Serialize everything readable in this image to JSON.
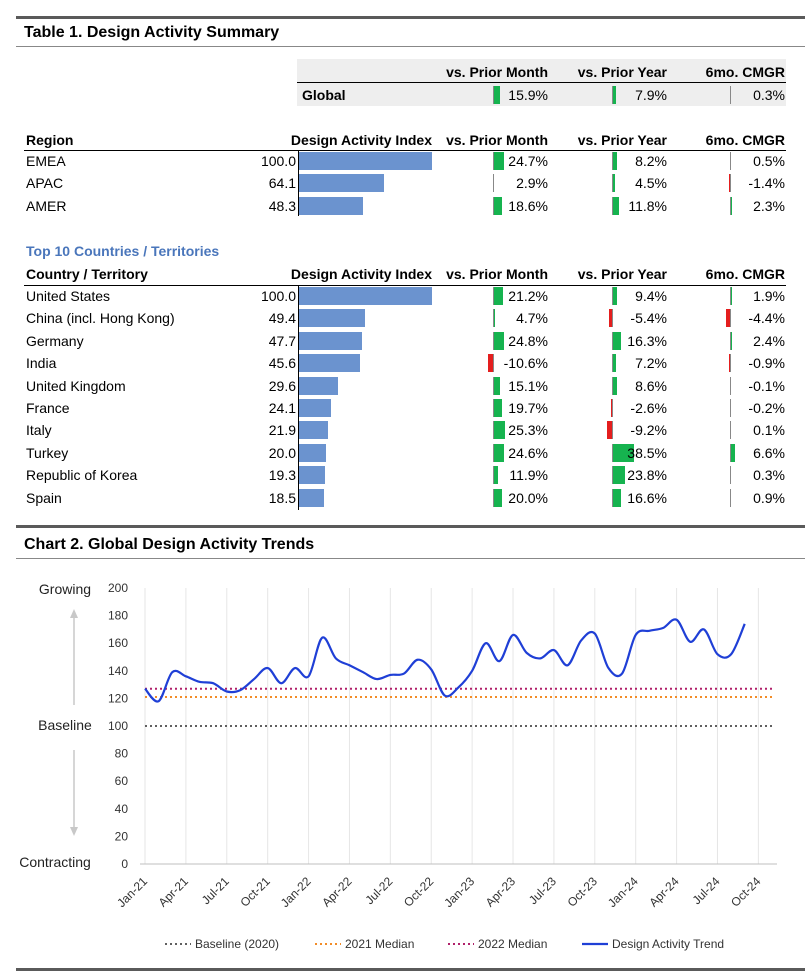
{
  "table1": {
    "title": "Table 1. Design Activity Summary",
    "summary_headers": {
      "mom": "vs. Prior Month",
      "yoy": "vs. Prior Year",
      "cmgr": "6mo. CMGR"
    },
    "global": {
      "label": "Global",
      "mom": "15.9%",
      "yoy": "7.9%",
      "cmgr": "0.3%",
      "mom_v": 15.9,
      "yoy_v": 7.9,
      "cmgr_v": 0.3
    },
    "region_headers": {
      "name": "Region",
      "index": "Design Activity Index",
      "mom": "vs. Prior Month",
      "yoy": "vs. Prior Year",
      "cmgr": "6mo. CMGR"
    },
    "regions": [
      {
        "name": "EMEA",
        "index": "100.0",
        "index_v": 100.0,
        "mom": "24.7%",
        "mom_v": 24.7,
        "yoy": "8.2%",
        "yoy_v": 8.2,
        "cmgr": "0.5%",
        "cmgr_v": 0.5
      },
      {
        "name": "APAC",
        "index": "64.1",
        "index_v": 64.1,
        "mom": "2.9%",
        "mom_v": 2.9,
        "yoy": "4.5%",
        "yoy_v": 4.5,
        "cmgr": "-1.4%",
        "cmgr_v": -1.4
      },
      {
        "name": "AMER",
        "index": "48.3",
        "index_v": 48.3,
        "mom": "18.6%",
        "mom_v": 18.6,
        "yoy": "11.8%",
        "yoy_v": 11.8,
        "cmgr": "2.3%",
        "cmgr_v": 2.3
      }
    ],
    "countries_title": "Top 10 Countries / Territories",
    "country_headers": {
      "name": "Country / Territory",
      "index": "Design Activity Index",
      "mom": "vs. Prior Month",
      "yoy": "vs. Prior Year",
      "cmgr": "6mo. CMGR"
    },
    "countries": [
      {
        "name": "United States",
        "index": "100.0",
        "index_v": 100.0,
        "mom": "21.2%",
        "mom_v": 21.2,
        "yoy": "9.4%",
        "yoy_v": 9.4,
        "cmgr": "1.9%",
        "cmgr_v": 1.9
      },
      {
        "name": "China (incl. Hong Kong)",
        "index": "49.4",
        "index_v": 49.4,
        "mom": "4.7%",
        "mom_v": 4.7,
        "yoy": "-5.4%",
        "yoy_v": -5.4,
        "cmgr": "-4.4%",
        "cmgr_v": -4.4
      },
      {
        "name": "Germany",
        "index": "47.7",
        "index_v": 47.7,
        "mom": "24.8%",
        "mom_v": 24.8,
        "yoy": "16.3%",
        "yoy_v": 16.3,
        "cmgr": "2.4%",
        "cmgr_v": 2.4
      },
      {
        "name": "India",
        "index": "45.6",
        "index_v": 45.6,
        "mom": "-10.6%",
        "mom_v": -10.6,
        "yoy": "7.2%",
        "yoy_v": 7.2,
        "cmgr": "-0.9%",
        "cmgr_v": -0.9
      },
      {
        "name": "United Kingdom",
        "index": "29.6",
        "index_v": 29.6,
        "mom": "15.1%",
        "mom_v": 15.1,
        "yoy": "8.6%",
        "yoy_v": 8.6,
        "cmgr": "-0.1%",
        "cmgr_v": -0.1
      },
      {
        "name": "France",
        "index": "24.1",
        "index_v": 24.1,
        "mom": "19.7%",
        "mom_v": 19.7,
        "yoy": "-2.6%",
        "yoy_v": -2.6,
        "cmgr": "-0.2%",
        "cmgr_v": -0.2
      },
      {
        "name": "Italy",
        "index": "21.9",
        "index_v": 21.9,
        "mom": "25.3%",
        "mom_v": 25.3,
        "yoy": "-9.2%",
        "yoy_v": -9.2,
        "cmgr": "0.1%",
        "cmgr_v": 0.1
      },
      {
        "name": "Turkey",
        "index": "20.0",
        "index_v": 20.0,
        "mom": "24.6%",
        "mom_v": 24.6,
        "yoy": "38.5%",
        "yoy_v": 38.5,
        "cmgr": "6.6%",
        "cmgr_v": 6.6
      },
      {
        "name": "Republic of Korea",
        "index": "19.3",
        "index_v": 19.3,
        "mom": "11.9%",
        "mom_v": 11.9,
        "yoy": "23.8%",
        "yoy_v": 23.8,
        "cmgr": "0.3%",
        "cmgr_v": 0.3
      },
      {
        "name": "Spain",
        "index": "18.5",
        "index_v": 18.5,
        "mom": "20.0%",
        "mom_v": 20.0,
        "yoy": "16.6%",
        "yoy_v": 16.6,
        "cmgr": "0.9%",
        "cmgr_v": 0.9
      }
    ]
  },
  "chart2": {
    "title": "Chart 2. Global Design Activity Trends",
    "growing_label": "Growing",
    "baseline_label": "Baseline",
    "contracting_label": "Contracting"
  },
  "colors": {
    "index_bar": "#6b93cf",
    "positive_bar": "#16b34f",
    "negative_bar": "#e41e1e",
    "trend_line": "#1f3fd6",
    "baseline_line": "#606060",
    "median_2021": "#f28c28",
    "median_2022": "#b0206a",
    "subheading": "#4a76bb"
  },
  "chart_data": {
    "type": "line",
    "title": "Chart 2. Global Design Activity Trends",
    "xlabel": "",
    "ylabel": "",
    "ylim": [
      0,
      200
    ],
    "yticks": [
      0,
      20,
      40,
      60,
      80,
      100,
      120,
      140,
      160,
      180,
      200
    ],
    "xticks": [
      "Jan-21",
      "Apr-21",
      "Jul-21",
      "Oct-21",
      "Jan-22",
      "Apr-22",
      "Jul-22",
      "Oct-22",
      "Jan-23",
      "Apr-23",
      "Jul-23",
      "Oct-23",
      "Jan-24",
      "Apr-24",
      "Jul-24",
      "Oct-24"
    ],
    "x_months": 46,
    "series": [
      {
        "name": "Baseline (2020)",
        "style": "dotted",
        "values": [
          100,
          100
        ]
      },
      {
        "name": "2021 Median",
        "style": "dotted",
        "values": [
          121,
          121
        ]
      },
      {
        "name": "2022 Median",
        "style": "dotted",
        "values": [
          127,
          127
        ]
      },
      {
        "name": "Design Activity Trend",
        "style": "solid",
        "values": [
          127,
          118,
          139,
          136,
          132,
          131,
          125,
          126,
          134,
          142,
          131,
          142,
          136,
          164,
          149,
          144,
          139,
          134,
          137,
          138,
          148,
          141,
          122,
          128,
          140,
          160,
          147,
          166,
          153,
          149,
          155,
          144,
          162,
          167,
          142,
          138,
          166,
          169,
          171,
          177,
          161,
          170,
          152,
          152,
          174
        ]
      }
    ],
    "legend_position": "bottom"
  }
}
